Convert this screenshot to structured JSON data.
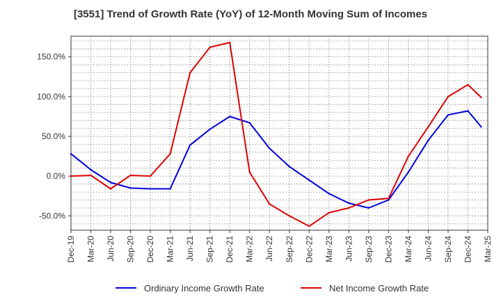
{
  "chart_data": {
    "type": "line",
    "title": "[3551]  Trend of Growth Rate (YoY) of 12-Month Moving Sum of Incomes",
    "xlabel": "",
    "ylabel": "",
    "x_ticks": [
      "Dec-19",
      "Mar-20",
      "Jun-20",
      "Sep-20",
      "Dec-20",
      "Mar-21",
      "Jun-21",
      "Sep-21",
      "Dec-21",
      "Mar-22",
      "Jun-22",
      "Sep-22",
      "Dec-22",
      "Mar-23",
      "Jun-23",
      "Sep-23",
      "Dec-23",
      "Mar-24",
      "Jun-24",
      "Sep-24",
      "Dec-24",
      "Mar-25"
    ],
    "y_ticks": [
      "150.0%",
      "100.0%",
      "50.0%",
      "0.0%",
      "-50.0%"
    ],
    "y_tick_values": [
      150,
      100,
      50,
      0,
      -50
    ],
    "ylim": [
      -68,
      176
    ],
    "x_range_months": [
      0,
      63
    ],
    "grid": true,
    "legend_position": "bottom",
    "series": [
      {
        "name": "Ordinary Income Growth Rate",
        "color": "#0000dd",
        "x": [
          0,
          3,
          6,
          9,
          12,
          15,
          18,
          21,
          24,
          27,
          30,
          33,
          36,
          39,
          42,
          45,
          48,
          51,
          54,
          57,
          60,
          62
        ],
        "values": [
          28,
          8,
          -8,
          -15,
          -16,
          -16,
          39,
          59,
          75,
          67,
          35,
          12,
          -5,
          -22,
          -34,
          -40,
          -30,
          5,
          45,
          77,
          82,
          62
        ]
      },
      {
        "name": "Net Income Growth Rate",
        "color": "#dd0000",
        "x": [
          0,
          3,
          6,
          9,
          12,
          15,
          18,
          21,
          24,
          27,
          30,
          33,
          36,
          39,
          42,
          45,
          48,
          51,
          54,
          57,
          60,
          62
        ],
        "values": [
          0,
          1,
          -16,
          1,
          0,
          28,
          130,
          162,
          168,
          5,
          -35,
          -50,
          -63,
          -46,
          -40,
          -30,
          -28,
          25,
          62,
          100,
          115,
          99
        ]
      }
    ]
  }
}
